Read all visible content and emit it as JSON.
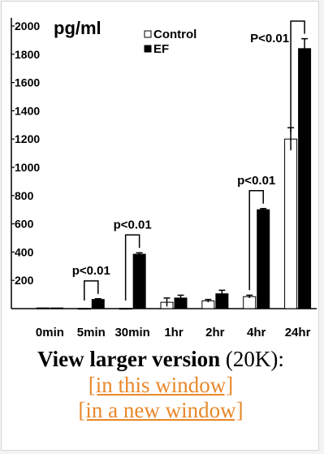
{
  "chart_data": {
    "type": "bar",
    "unit_label": "pg/ml",
    "categories": [
      "0min",
      "5min",
      "30min",
      "1hr",
      "2hr",
      "4hr",
      "24hr"
    ],
    "series": [
      {
        "name": "Control",
        "color": "#ffffff",
        "values": [
          5,
          2,
          2,
          45,
          55,
          85,
          1200
        ],
        "errors": [
          0,
          0,
          0,
          30,
          10,
          10,
          80
        ]
      },
      {
        "name": "EF",
        "color": "#000000",
        "values": [
          5,
          65,
          385,
          75,
          105,
          700,
          1840
        ],
        "errors": [
          0,
          5,
          10,
          20,
          25,
          8,
          70
        ]
      }
    ],
    "yticks": [
      200,
      400,
      600,
      800,
      1000,
      1200,
      1400,
      1600,
      1800,
      2000
    ],
    "ylim": [
      0,
      2000
    ],
    "annotations": [
      {
        "text": "p<0.01",
        "category": "5min"
      },
      {
        "text": "p<0.01",
        "category": "30min"
      },
      {
        "text": "p<0.01",
        "category": "4hr"
      },
      {
        "text": "P<0.01",
        "category": "24hr"
      }
    ],
    "legend": "top-right"
  },
  "caption": {
    "bold_text": "View larger version",
    "size_text": " (20K):"
  },
  "links": {
    "this_window": "[in this window]",
    "new_window": "[in a new window]"
  }
}
